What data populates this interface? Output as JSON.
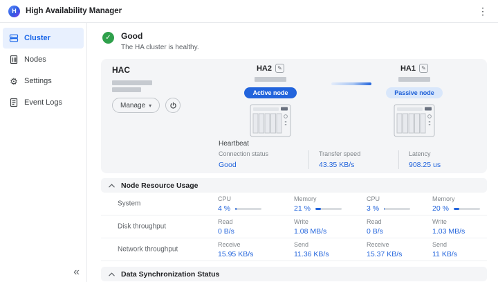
{
  "header": {
    "title": "High Availability Manager"
  },
  "icons": {
    "kebab": "⋮",
    "collapse": "«",
    "caret_down": "▾",
    "check": "✓",
    "pencil": "✎",
    "gear": "⚙"
  },
  "sidebar": {
    "items": [
      {
        "label": "Cluster"
      },
      {
        "label": "Nodes"
      },
      {
        "label": "Settings"
      },
      {
        "label": "Event Logs"
      }
    ]
  },
  "status": {
    "state": "Good",
    "description": "The HA cluster is healthy."
  },
  "cluster": {
    "name": "HAC",
    "manage_label": "Manage",
    "nodes": [
      {
        "name": "HA2",
        "role": "Active node"
      },
      {
        "name": "HA1",
        "role": "Passive node"
      }
    ],
    "heartbeat": {
      "title": "Heartbeat",
      "metrics": [
        {
          "label": "Connection status",
          "value": "Good"
        },
        {
          "label": "Transfer speed",
          "value": "43.35 KB/s"
        },
        {
          "label": "Latency",
          "value": "908.25 us"
        }
      ]
    }
  },
  "resource": {
    "title": "Node Resource Usage",
    "rows": [
      {
        "label": "System",
        "cells": [
          {
            "label": "CPU",
            "value": "4 %",
            "bar": 4
          },
          {
            "label": "Memory",
            "value": "21 %",
            "bar": 21
          },
          {
            "label": "CPU",
            "value": "3 %",
            "bar": 3
          },
          {
            "label": "Memory",
            "value": "20 %",
            "bar": 20
          }
        ]
      },
      {
        "label": "Disk throughput",
        "cells": [
          {
            "label": "Read",
            "value": "0 B/s"
          },
          {
            "label": "Write",
            "value": "1.08 MB/s"
          },
          {
            "label": "Read",
            "value": "0 B/s"
          },
          {
            "label": "Write",
            "value": "1.03 MB/s"
          }
        ]
      },
      {
        "label": "Network throughput",
        "cells": [
          {
            "label": "Receive",
            "value": "15.95 KB/s"
          },
          {
            "label": "Send",
            "value": "11.36 KB/s"
          },
          {
            "label": "Receive",
            "value": "15.37 KB/s"
          },
          {
            "label": "Send",
            "value": "11 KB/s"
          }
        ]
      }
    ]
  },
  "sync": {
    "title": "Data Synchronization Status"
  },
  "colors": {
    "accent": "#2264dc",
    "success": "#2fa04b",
    "active_badge": "#2264dc",
    "passive_badge_bg": "#d9e7fb",
    "sidebar_active_bg": "#e8f0fe"
  }
}
